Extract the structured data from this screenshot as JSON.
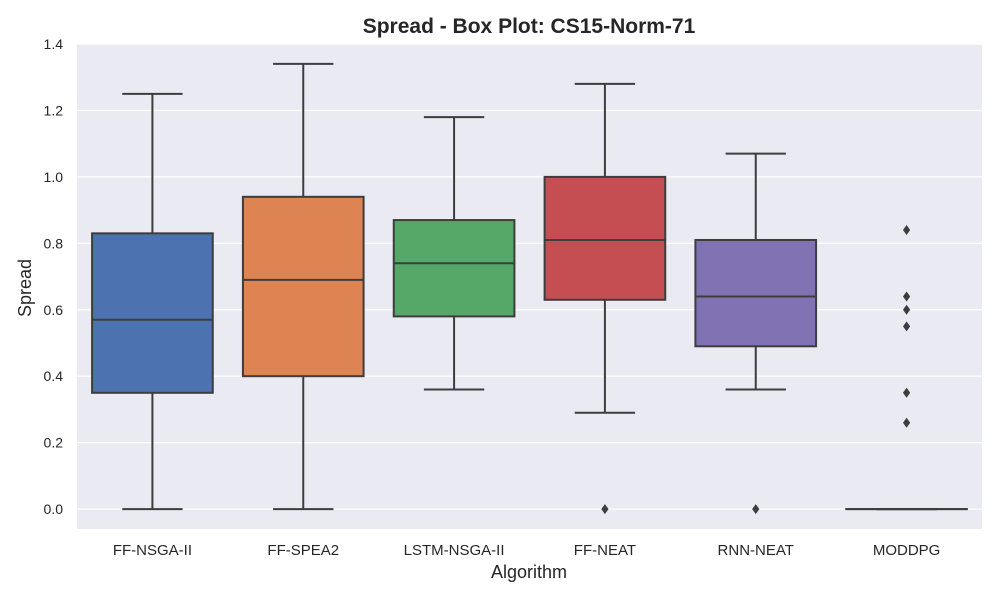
{
  "chart_data": {
    "type": "box",
    "title": "Spread - Box Plot: CS15-Norm-71",
    "xlabel": "Algorithm",
    "ylabel": "Spread",
    "ylim": [
      -0.06,
      1.4
    ],
    "yticks": [
      "0.0",
      "0.2",
      "0.4",
      "0.6",
      "0.8",
      "1.0",
      "1.2",
      "1.4"
    ],
    "grid": true,
    "categories": [
      "FF-NSGA-II",
      "FF-SPEA2",
      "LSTM-NSGA-II",
      "FF-NEAT",
      "RNN-NEAT",
      "MODDPG"
    ],
    "series": [
      {
        "whisker_low": 0.0,
        "q1": 0.35,
        "median": 0.57,
        "q3": 0.83,
        "whisker_high": 1.25,
        "outliers": [],
        "color": "#4c72b0"
      },
      {
        "whisker_low": 0.0,
        "q1": 0.4,
        "median": 0.69,
        "q3": 0.94,
        "whisker_high": 1.34,
        "outliers": [],
        "color": "#dd8452"
      },
      {
        "whisker_low": 0.36,
        "q1": 0.58,
        "median": 0.74,
        "q3": 0.87,
        "whisker_high": 1.18,
        "outliers": [],
        "color": "#55a868"
      },
      {
        "whisker_low": 0.29,
        "q1": 0.63,
        "median": 0.81,
        "q3": 1.0,
        "whisker_high": 1.28,
        "outliers": [
          0.0
        ],
        "color": "#c44e52"
      },
      {
        "whisker_low": 0.36,
        "q1": 0.49,
        "median": 0.64,
        "q3": 0.81,
        "whisker_high": 1.07,
        "outliers": [
          0.0
        ],
        "color": "#8172b3"
      },
      {
        "whisker_low": 0.0,
        "q1": 0.0,
        "median": 0.0,
        "q3": 0.0,
        "whisker_high": 0.0,
        "outliers": [
          0.84,
          0.64,
          0.6,
          0.55,
          0.35,
          0.26
        ],
        "color": "#937860"
      }
    ]
  }
}
